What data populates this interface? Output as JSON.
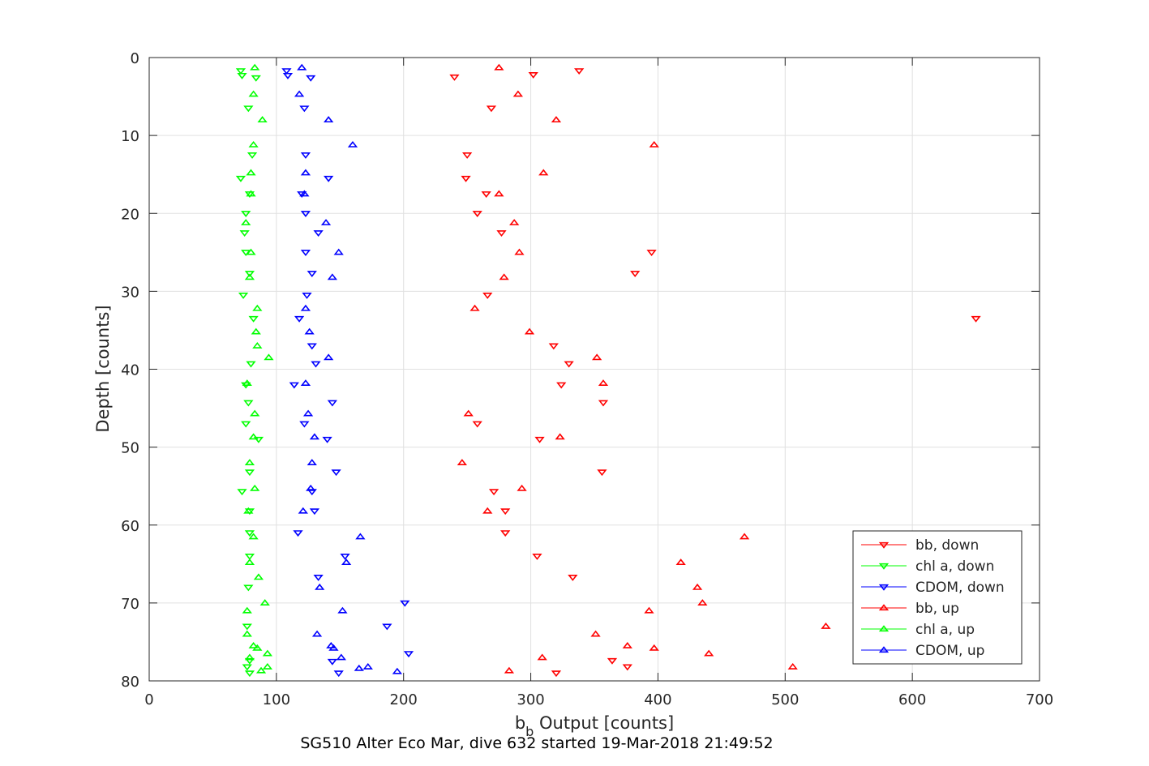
{
  "chart_data": {
    "type": "scatter",
    "title": "SG510 Alter Eco Mar, dive 632 started 19-Mar-2018 21:49:52",
    "xlabel": {
      "main": "b",
      "sub": "b",
      "rest": " Output [counts]"
    },
    "ylabel": "Depth [counts]",
    "xlim": [
      0,
      700
    ],
    "ylim": [
      0,
      80
    ],
    "y_reversed": true,
    "grid": true,
    "xticks": [
      0,
      100,
      200,
      300,
      400,
      500,
      600,
      700
    ],
    "yticks": [
      0,
      10,
      20,
      30,
      40,
      50,
      60,
      70,
      80
    ],
    "legend_position": "bottom-right",
    "series": [
      {
        "name": "bb, down",
        "color": "#ff0000",
        "marker": "triangle-down",
        "points": [
          [
            240,
            2.5
          ],
          [
            302,
            2.2
          ],
          [
            338,
            1.7
          ],
          [
            269,
            6.5
          ],
          [
            250,
            12.5
          ],
          [
            249,
            15.5
          ],
          [
            265,
            17.5
          ],
          [
            258,
            20
          ],
          [
            277,
            22.5
          ],
          [
            395,
            25
          ],
          [
            382,
            27.7
          ],
          [
            266,
            30.5
          ],
          [
            650,
            33.5
          ],
          [
            318,
            37
          ],
          [
            330,
            39.3
          ],
          [
            324,
            42
          ],
          [
            357,
            44.3
          ],
          [
            258,
            47
          ],
          [
            307,
            49
          ],
          [
            356,
            53.2
          ],
          [
            271,
            55.7
          ],
          [
            280,
            58.2
          ],
          [
            280,
            61
          ],
          [
            305,
            64
          ],
          [
            333,
            66.7
          ],
          [
            364,
            77.4
          ],
          [
            376,
            78.2
          ],
          [
            320,
            79
          ]
        ]
      },
      {
        "name": "chl a, down",
        "color": "#00ff00",
        "marker": "triangle-down",
        "points": [
          [
            72,
            1.7
          ],
          [
            73,
            2.3
          ],
          [
            84,
            2.6
          ],
          [
            78,
            6.5
          ],
          [
            81,
            12.5
          ],
          [
            72,
            15.5
          ],
          [
            79,
            17.5
          ],
          [
            76,
            20
          ],
          [
            75,
            22.5
          ],
          [
            76,
            25
          ],
          [
            79,
            27.7
          ],
          [
            74,
            30.5
          ],
          [
            82,
            33.5
          ],
          [
            80,
            39.3
          ],
          [
            76,
            42
          ],
          [
            78,
            44.3
          ],
          [
            76,
            47
          ],
          [
            86,
            49
          ],
          [
            79,
            53.2
          ],
          [
            73,
            55.7
          ],
          [
            79,
            58.2
          ],
          [
            79,
            61
          ],
          [
            79,
            64
          ],
          [
            78,
            68
          ],
          [
            77,
            73
          ],
          [
            79,
            77.4
          ],
          [
            77,
            78.2
          ],
          [
            79,
            79
          ]
        ]
      },
      {
        "name": "CDOM, down",
        "color": "#0000ff",
        "marker": "triangle-down",
        "points": [
          [
            108,
            1.7
          ],
          [
            109,
            2.3
          ],
          [
            127,
            2.6
          ],
          [
            122,
            6.5
          ],
          [
            123,
            12.5
          ],
          [
            141,
            15.5
          ],
          [
            120,
            17.5
          ],
          [
            123,
            20
          ],
          [
            133,
            22.5
          ],
          [
            123,
            25
          ],
          [
            128,
            27.7
          ],
          [
            124,
            30.5
          ],
          [
            118,
            33.5
          ],
          [
            128,
            37
          ],
          [
            131,
            39.3
          ],
          [
            114,
            42
          ],
          [
            144,
            44.3
          ],
          [
            122,
            47
          ],
          [
            140,
            49
          ],
          [
            147,
            53.2
          ],
          [
            128,
            55.7
          ],
          [
            130,
            58.2
          ],
          [
            117,
            61
          ],
          [
            154,
            64
          ],
          [
            133,
            66.7
          ],
          [
            201,
            70
          ],
          [
            187,
            73
          ],
          [
            204,
            76.5
          ],
          [
            144,
            77.5
          ],
          [
            149,
            79
          ]
        ]
      },
      {
        "name": "bb, up",
        "color": "#ff0000",
        "marker": "triangle-up",
        "points": [
          [
            275,
            1.3
          ],
          [
            290,
            4.7
          ],
          [
            320,
            8
          ],
          [
            397,
            11.2
          ],
          [
            310,
            14.8
          ],
          [
            275,
            17.5
          ],
          [
            287,
            21.2
          ],
          [
            291,
            25
          ],
          [
            279,
            28.2
          ],
          [
            256,
            32.2
          ],
          [
            299,
            35.2
          ],
          [
            352,
            38.5
          ],
          [
            357,
            41.8
          ],
          [
            251,
            45.7
          ],
          [
            323,
            48.7
          ],
          [
            246,
            52
          ],
          [
            293,
            55.3
          ],
          [
            266,
            58.2
          ],
          [
            468,
            61.5
          ],
          [
            418,
            64.8
          ],
          [
            431,
            68
          ],
          [
            435,
            70
          ],
          [
            393,
            71
          ],
          [
            532,
            73
          ],
          [
            351,
            74
          ],
          [
            376,
            75.5
          ],
          [
            397,
            75.8
          ],
          [
            440,
            76.5
          ],
          [
            309,
            77
          ],
          [
            506,
            78.2
          ],
          [
            283,
            78.7
          ]
        ]
      },
      {
        "name": "chl a, up",
        "color": "#00ff00",
        "marker": "triangle-up",
        "points": [
          [
            83,
            1.3
          ],
          [
            82,
            4.7
          ],
          [
            89,
            8
          ],
          [
            82,
            11.2
          ],
          [
            80,
            14.8
          ],
          [
            80,
            17.5
          ],
          [
            76,
            21.2
          ],
          [
            80,
            25
          ],
          [
            79,
            28.2
          ],
          [
            85,
            32.2
          ],
          [
            84,
            35.2
          ],
          [
            85,
            37
          ],
          [
            94,
            38.5
          ],
          [
            77,
            41.8
          ],
          [
            83,
            45.7
          ],
          [
            82,
            48.7
          ],
          [
            79,
            52
          ],
          [
            83,
            55.3
          ],
          [
            78,
            58.2
          ],
          [
            82,
            61.5
          ],
          [
            79,
            64.8
          ],
          [
            86,
            66.7
          ],
          [
            91,
            70
          ],
          [
            77,
            71
          ],
          [
            77,
            74
          ],
          [
            82,
            75.5
          ],
          [
            85,
            75.8
          ],
          [
            93,
            76.5
          ],
          [
            79,
            77
          ],
          [
            93,
            78.2
          ],
          [
            88,
            78.7
          ]
        ]
      },
      {
        "name": "CDOM, up",
        "color": "#0000ff",
        "marker": "triangle-up",
        "points": [
          [
            120,
            1.3
          ],
          [
            118,
            4.7
          ],
          [
            141,
            8
          ],
          [
            160,
            11.2
          ],
          [
            123,
            14.8
          ],
          [
            122,
            17.5
          ],
          [
            139,
            21.2
          ],
          [
            149,
            25
          ],
          [
            144,
            28.2
          ],
          [
            123,
            32.2
          ],
          [
            126,
            35.2
          ],
          [
            141,
            38.5
          ],
          [
            123,
            41.8
          ],
          [
            125,
            45.7
          ],
          [
            130,
            48.7
          ],
          [
            128,
            52
          ],
          [
            127,
            55.3
          ],
          [
            121,
            58.2
          ],
          [
            166,
            61.5
          ],
          [
            155,
            64.8
          ],
          [
            134,
            68
          ],
          [
            152,
            71
          ],
          [
            132,
            74
          ],
          [
            143,
            75.5
          ],
          [
            145,
            75.8
          ],
          [
            151,
            77
          ],
          [
            172,
            78.2
          ],
          [
            165,
            78.4
          ],
          [
            195,
            78.8
          ]
        ]
      }
    ]
  }
}
